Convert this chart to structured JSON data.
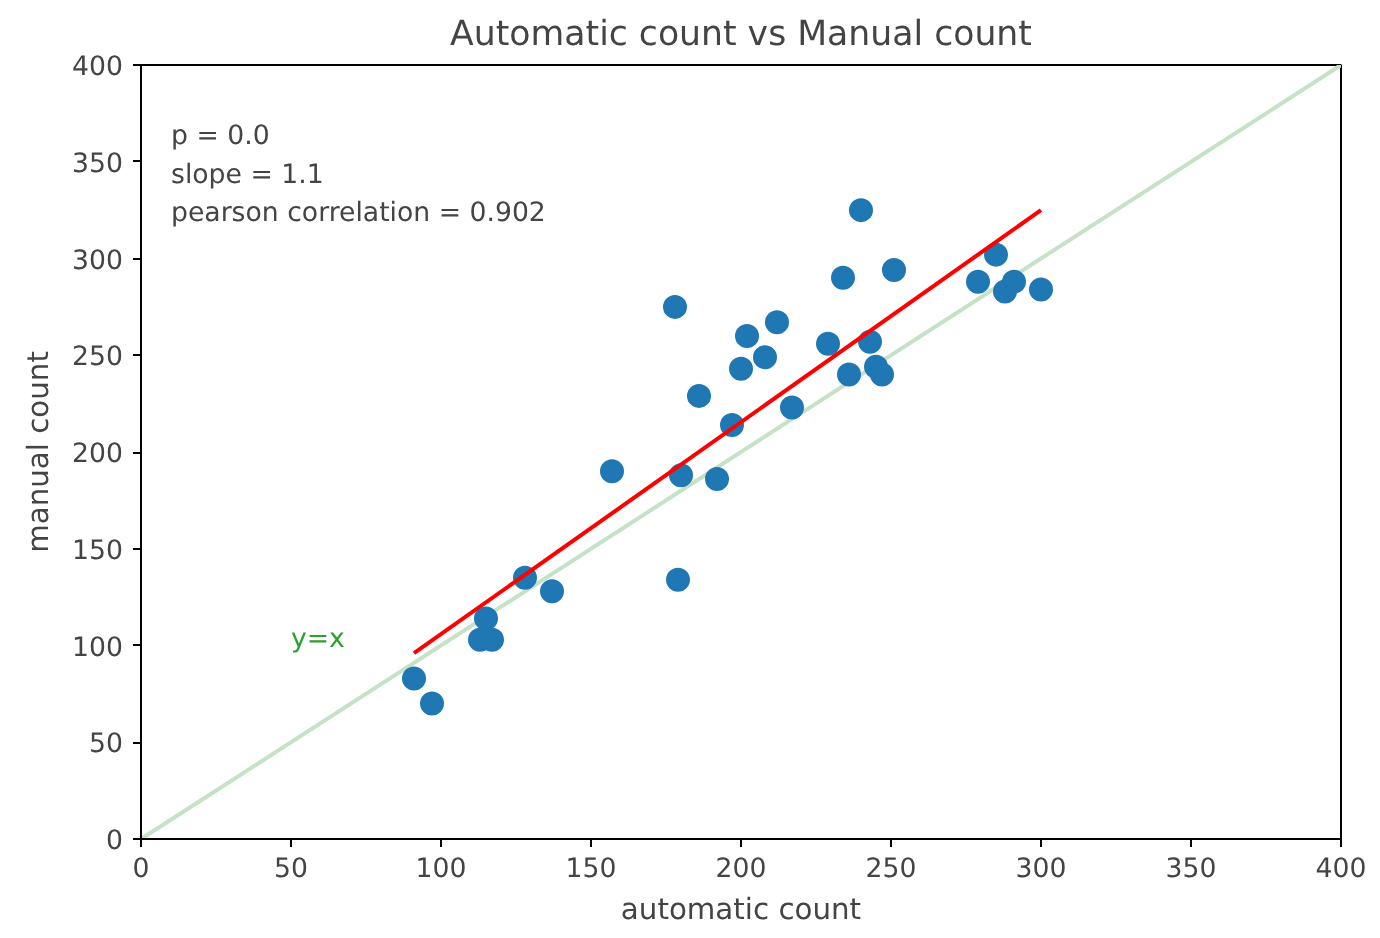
{
  "chart_data": {
    "type": "scatter",
    "title": "Automatic count vs Manual count",
    "xlabel": "automatic count",
    "ylabel": "manual count",
    "xlim": [
      0,
      400
    ],
    "ylim": [
      0,
      400
    ],
    "xticks": [
      0,
      50,
      100,
      150,
      200,
      250,
      300,
      350,
      400
    ],
    "yticks": [
      0,
      50,
      100,
      150,
      200,
      250,
      300,
      350,
      400
    ],
    "grid": false,
    "annotations": [
      "p = 0.0",
      "slope = 1.1",
      "pearson correlation = 0.902"
    ],
    "series": [
      {
        "type": "line",
        "name": "y=x",
        "color": "#c6e2c6",
        "x": [
          0,
          400
        ],
        "values": [
          0,
          400
        ]
      },
      {
        "marker": "circle",
        "color": "#1f77b4",
        "x": [
          91,
          97,
          113,
          115,
          117,
          128,
          137,
          157,
          178,
          179,
          180,
          186,
          192,
          197,
          200,
          202,
          208,
          212,
          217,
          229,
          234,
          236,
          240,
          243,
          245,
          247,
          251,
          279,
          285,
          288,
          291,
          300
        ],
        "values": [
          83,
          70,
          103,
          114,
          103,
          135,
          128,
          190,
          275,
          134,
          188,
          229,
          186,
          214,
          243,
          260,
          249,
          267,
          223,
          256,
          290,
          240,
          325,
          257,
          244,
          240,
          294,
          288,
          302,
          283,
          288,
          284
        ]
      },
      {
        "type": "line",
        "color": "#ff0000",
        "x": [
          91,
          300
        ],
        "values": [
          96,
          325
        ]
      }
    ]
  }
}
